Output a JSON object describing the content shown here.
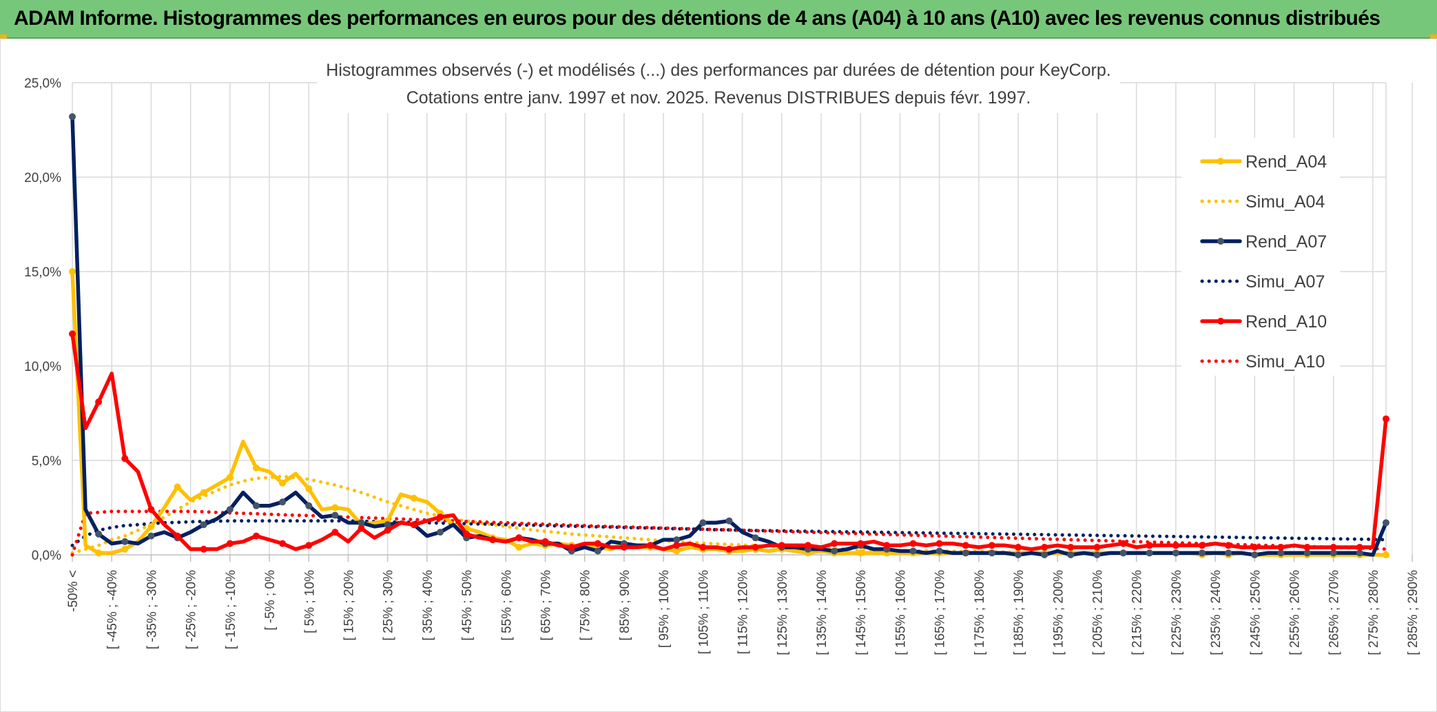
{
  "header": {
    "title": "ADAM Informe. Histogrammes des performances en euros pour des détentions de 4 ans (A04) à 10 ans (A10) avec les revenus connus distribués"
  },
  "chart_data": {
    "type": "line",
    "title": "Histogrammes observés (-) et modélisés (...) des performances par durées de détention pour KeyCorp.",
    "subtitle": "Cotations entre janv. 1997 et nov. 2025. Revenus DISTRIBUES depuis févr. 1997.",
    "xlabel": "",
    "ylabel": "",
    "ylim": [
      0,
      25
    ],
    "y_ticks": [
      "0,0%",
      "5,0%",
      "10,0%",
      "15,0%",
      "20,0%",
      "25,0%"
    ],
    "x_tick_labels": [
      "-50% <",
      "[ -45% ; -40%",
      "[ -35% ; -30%",
      "[ -25% ; -20%",
      "[ -15% ; -10%",
      "[ -5% ; 0%",
      "[ 5% ; 10%",
      "[ 15% ; 20%",
      "[ 25% ; 30%",
      "[ 35% ; 40%",
      "[ 45% ; 50%",
      "[ 55% ; 60%",
      "[ 65% ; 70%",
      "[ 75% ; 80%",
      "[ 85% ; 90%",
      "[ 95% ; 100%",
      "[ 105% ; 110%",
      "[ 115% ; 120%",
      "[ 125% ; 130%",
      "[ 135% ; 140%",
      "[ 145% ; 150%",
      "[ 155% ; 160%",
      "[ 165% ; 170%",
      "[ 175% ; 180%",
      "[ 185% ; 190%",
      "[ 195% ; 200%",
      "[ 205% ; 210%",
      "[ 215% ; 220%",
      "[ 225% ; 230%",
      "[ 235% ; 240%",
      "[ 245% ; 250%",
      "[ 255% ; 260%",
      "[ 265% ; 270%",
      "[ 275% ; 280%",
      "[ 285% ; 290%"
    ],
    "grid": true,
    "legend_position": "right",
    "series": [
      {
        "name": "Rend_A04",
        "style": "solid",
        "color": "#ffc000",
        "values": [
          15.0,
          0.5,
          0.1,
          0.1,
          0.3,
          0.7,
          1.5,
          2.5,
          3.6,
          2.9,
          3.3,
          3.7,
          4.1,
          6.0,
          4.6,
          4.4,
          3.8,
          4.3,
          3.5,
          2.4,
          2.5,
          2.4,
          1.6,
          1.7,
          1.8,
          3.2,
          3.0,
          2.8,
          2.2,
          1.6,
          1.4,
          1.2,
          0.9,
          0.8,
          0.4,
          0.6,
          0.5,
          0.6,
          0.5,
          0.4,
          0.4,
          0.3,
          0.6,
          0.4,
          0.4,
          0.3,
          0.2,
          0.4,
          0.3,
          0.3,
          0.2,
          0.2,
          0.3,
          0.2,
          0.3,
          0.2,
          0.1,
          0.2,
          0.1,
          0.1,
          0.1,
          0.1,
          0.1,
          0.1,
          0.1,
          0.1,
          0.1,
          0.1,
          0.1,
          0.1,
          0.1,
          0.1,
          0.1,
          0.1,
          0.1,
          0.1,
          0.1,
          0.1,
          0.1,
          0.1,
          0.1,
          0.1,
          0.1,
          0.1,
          0.1,
          0.1,
          0.0,
          0.1,
          0.0,
          0.1,
          0.0,
          0.0,
          0.0,
          0.0,
          0.0,
          0.0,
          0.0,
          0.0,
          0.0,
          0.0,
          0.0
        ]
      },
      {
        "name": "Simu_A04",
        "style": "dotted",
        "color": "#ffc000",
        "values": [
          0.1,
          0.3,
          0.5,
          0.8,
          1.0,
          1.3,
          1.6,
          2.0,
          2.4,
          2.8,
          3.1,
          3.4,
          3.7,
          3.9,
          4.05,
          4.1,
          4.15,
          4.1,
          4.0,
          3.85,
          3.7,
          3.5,
          3.3,
          3.05,
          2.8,
          2.6,
          2.4,
          2.2,
          2.05,
          1.9,
          1.8,
          1.7,
          1.6,
          1.5,
          1.4,
          1.32,
          1.25,
          1.18,
          1.1,
          1.05,
          1.0,
          0.95,
          0.9,
          0.85,
          0.8,
          0.75,
          0.7,
          0.66,
          0.62,
          0.58,
          0.55,
          0.52,
          0.49,
          0.46,
          0.43,
          0.4,
          0.37,
          0.35,
          0.33,
          0.31,
          0.29,
          0.27,
          0.25,
          0.23,
          0.22,
          0.21,
          0.2,
          0.19,
          0.18,
          0.17,
          0.16,
          0.15,
          0.14,
          0.13,
          0.12,
          0.11,
          0.1,
          0.1,
          0.09,
          0.09,
          0.08,
          0.08,
          0.07,
          0.07,
          0.06,
          0.06,
          0.05,
          0.05,
          0.05,
          0.05,
          0.04,
          0.04,
          0.04,
          0.04,
          0.03,
          0.03,
          0.03,
          0.03,
          0.03,
          0.03,
          0.03
        ]
      },
      {
        "name": "Rend_A07",
        "style": "solid",
        "color": "#002060",
        "values": [
          23.2,
          2.4,
          1.1,
          0.6,
          0.7,
          0.6,
          1.0,
          1.2,
          0.9,
          1.2,
          1.6,
          1.9,
          2.4,
          3.3,
          2.6,
          2.6,
          2.8,
          3.3,
          2.6,
          2.0,
          2.1,
          1.7,
          1.7,
          1.5,
          1.6,
          1.7,
          1.6,
          1.0,
          1.2,
          1.6,
          0.9,
          1.0,
          0.8,
          0.7,
          0.9,
          0.8,
          0.6,
          0.6,
          0.2,
          0.4,
          0.2,
          0.7,
          0.6,
          0.5,
          0.5,
          0.8,
          0.8,
          1.0,
          1.7,
          1.7,
          1.8,
          1.2,
          0.9,
          0.7,
          0.4,
          0.4,
          0.3,
          0.3,
          0.2,
          0.3,
          0.5,
          0.3,
          0.3,
          0.2,
          0.2,
          0.1,
          0.2,
          0.1,
          0.1,
          0.1,
          0.1,
          0.1,
          0.0,
          0.1,
          0.0,
          0.2,
          0.0,
          0.1,
          0.0,
          0.1,
          0.1,
          0.1,
          0.1,
          0.1,
          0.1,
          0.1,
          0.1,
          0.1,
          0.1,
          0.1,
          0.0,
          0.1,
          0.1,
          0.1,
          0.1,
          0.1,
          0.1,
          0.1,
          0.1,
          0.0,
          1.7
        ]
      },
      {
        "name": "Simu_A07",
        "style": "dotted",
        "color": "#002060",
        "values": [
          0.5,
          1.0,
          1.3,
          1.45,
          1.55,
          1.6,
          1.65,
          1.7,
          1.72,
          1.75,
          1.77,
          1.78,
          1.8,
          1.8,
          1.8,
          1.8,
          1.8,
          1.8,
          1.8,
          1.8,
          1.8,
          1.8,
          1.78,
          1.77,
          1.75,
          1.73,
          1.72,
          1.7,
          1.68,
          1.67,
          1.65,
          1.63,
          1.62,
          1.6,
          1.58,
          1.57,
          1.55,
          1.53,
          1.52,
          1.5,
          1.48,
          1.47,
          1.45,
          1.43,
          1.42,
          1.4,
          1.38,
          1.37,
          1.35,
          1.33,
          1.32,
          1.3,
          1.29,
          1.28,
          1.27,
          1.26,
          1.25,
          1.24,
          1.23,
          1.22,
          1.21,
          1.2,
          1.19,
          1.18,
          1.17,
          1.16,
          1.15,
          1.14,
          1.13,
          1.12,
          1.11,
          1.1,
          1.09,
          1.08,
          1.07,
          1.06,
          1.05,
          1.04,
          1.03,
          1.02,
          1.01,
          1.0,
          0.99,
          0.98,
          0.97,
          0.96,
          0.95,
          0.94,
          0.93,
          0.92,
          0.91,
          0.9,
          0.89,
          0.88,
          0.87,
          0.86,
          0.85,
          0.84,
          0.83,
          0.82,
          0.8
        ]
      },
      {
        "name": "Rend_A10",
        "style": "solid",
        "color": "#ff0000",
        "values": [
          11.7,
          6.7,
          8.1,
          9.6,
          5.1,
          4.4,
          2.4,
          1.6,
          1.0,
          0.3,
          0.3,
          0.3,
          0.6,
          0.7,
          1.0,
          0.8,
          0.6,
          0.3,
          0.5,
          0.8,
          1.2,
          0.7,
          1.4,
          0.9,
          1.3,
          1.7,
          1.6,
          1.8,
          2.0,
          2.1,
          1.1,
          0.9,
          0.8,
          0.7,
          0.9,
          0.7,
          0.7,
          0.5,
          0.4,
          0.6,
          0.6,
          0.4,
          0.4,
          0.4,
          0.5,
          0.3,
          0.5,
          0.6,
          0.4,
          0.4,
          0.3,
          0.4,
          0.4,
          0.5,
          0.5,
          0.5,
          0.5,
          0.4,
          0.6,
          0.6,
          0.6,
          0.7,
          0.5,
          0.5,
          0.6,
          0.5,
          0.6,
          0.6,
          0.5,
          0.4,
          0.5,
          0.5,
          0.4,
          0.3,
          0.4,
          0.5,
          0.4,
          0.4,
          0.4,
          0.5,
          0.6,
          0.4,
          0.5,
          0.5,
          0.5,
          0.5,
          0.5,
          0.6,
          0.5,
          0.4,
          0.4,
          0.4,
          0.4,
          0.5,
          0.4,
          0.4,
          0.4,
          0.4,
          0.4,
          0.4,
          7.2
        ]
      },
      {
        "name": "Simu_A10",
        "style": "dotted",
        "color": "#ff0000",
        "values": [
          0.0,
          2.2,
          2.25,
          2.3,
          2.3,
          2.3,
          2.3,
          2.3,
          2.3,
          2.3,
          2.28,
          2.25,
          2.22,
          2.2,
          2.18,
          2.15,
          2.12,
          2.1,
          2.08,
          2.05,
          2.02,
          2.0,
          1.97,
          1.95,
          1.92,
          1.9,
          1.87,
          1.85,
          1.82,
          1.8,
          1.77,
          1.75,
          1.72,
          1.7,
          1.67,
          1.65,
          1.62,
          1.6,
          1.57,
          1.55,
          1.52,
          1.5,
          1.48,
          1.46,
          1.44,
          1.42,
          1.4,
          1.38,
          1.36,
          1.34,
          1.32,
          1.3,
          1.28,
          1.26,
          1.24,
          1.22,
          1.2,
          1.18,
          1.16,
          1.14,
          1.12,
          1.1,
          1.08,
          1.06,
          1.04,
          1.02,
          1.0,
          0.98,
          0.96,
          0.94,
          0.92,
          0.9,
          0.88,
          0.86,
          0.84,
          0.82,
          0.8,
          0.78,
          0.76,
          0.74,
          0.72,
          0.7,
          0.68,
          0.66,
          0.64,
          0.62,
          0.6,
          0.58,
          0.56,
          0.54,
          0.52,
          0.5,
          0.48,
          0.46,
          0.44,
          0.42,
          0.4,
          0.38,
          0.36,
          0.34,
          0.3
        ]
      }
    ]
  }
}
